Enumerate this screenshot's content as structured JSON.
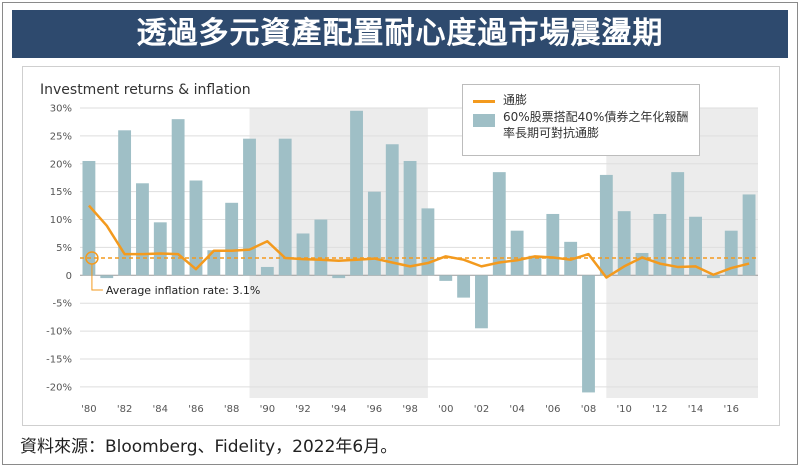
{
  "banner": {
    "title": "透過多元資產配置耐心度過市場震盪期"
  },
  "source": "資料來源：Bloomberg、Fidelity，2022年6月。",
  "chart_data": {
    "type": "bar",
    "title": "Investment returns & inflation",
    "ylim": [
      -22,
      30
    ],
    "y_ticks": [
      30,
      25,
      20,
      15,
      10,
      5,
      0,
      -5,
      -10,
      -15,
      -20
    ],
    "y_tick_labels": [
      "30%",
      "25%",
      "20%",
      "15%",
      "10%",
      "5%",
      "0",
      "-5%",
      "-10%",
      "-15%",
      "-20%"
    ],
    "x_tick_labels": [
      "'80",
      "'82",
      "'84",
      "'86",
      "'88",
      "'90",
      "'92",
      "'94",
      "'96",
      "'98",
      "'00",
      "'02",
      "'04",
      "'06",
      "'08",
      "'10",
      "'12",
      "'14",
      "'16"
    ],
    "categories": [
      1980,
      1981,
      1982,
      1983,
      1984,
      1985,
      1986,
      1987,
      1988,
      1989,
      1990,
      1991,
      1992,
      1993,
      1994,
      1995,
      1996,
      1997,
      1998,
      1999,
      2000,
      2001,
      2002,
      2003,
      2004,
      2005,
      2006,
      2007,
      2008,
      2009,
      2010,
      2011,
      2012,
      2013,
      2014,
      2015,
      2016,
      2017
    ],
    "series": [
      {
        "name": "60%股票搭配40%債券之年化報酬率長期可對抗通膨",
        "kind": "bar",
        "values": [
          20.5,
          -0.5,
          26.0,
          16.5,
          9.5,
          28.0,
          17.0,
          4.5,
          13.0,
          24.5,
          1.5,
          24.5,
          7.5,
          10.0,
          -0.5,
          29.5,
          15.0,
          23.5,
          20.5,
          12.0,
          -1.0,
          -4.0,
          -9.5,
          18.5,
          8.0,
          3.5,
          11.0,
          6.0,
          -21.0,
          18.0,
          11.5,
          4.0,
          11.0,
          18.5,
          10.5,
          -0.5,
          8.0,
          14.5
        ],
        "color": "#9fbfc6"
      },
      {
        "name": "通膨",
        "kind": "line",
        "values": [
          12.5,
          8.9,
          3.8,
          3.8,
          3.9,
          3.8,
          1.1,
          4.4,
          4.4,
          4.6,
          6.1,
          3.1,
          2.9,
          2.8,
          2.6,
          2.8,
          3.0,
          2.3,
          1.6,
          2.2,
          3.4,
          2.8,
          1.6,
          2.3,
          2.7,
          3.4,
          3.2,
          2.8,
          3.8,
          -0.4,
          1.6,
          3.2,
          2.1,
          1.5,
          1.6,
          0.1,
          1.3,
          2.1
        ],
        "color": "#f39a1e"
      }
    ],
    "reference_line": {
      "value": 3.1,
      "label": "Average inflation rate: 3.1%",
      "color": "#f39a1e"
    },
    "shaded_periods": [
      [
        1989,
        1999
      ],
      [
        2009,
        2017
      ]
    ],
    "legend_position": "top-right"
  }
}
